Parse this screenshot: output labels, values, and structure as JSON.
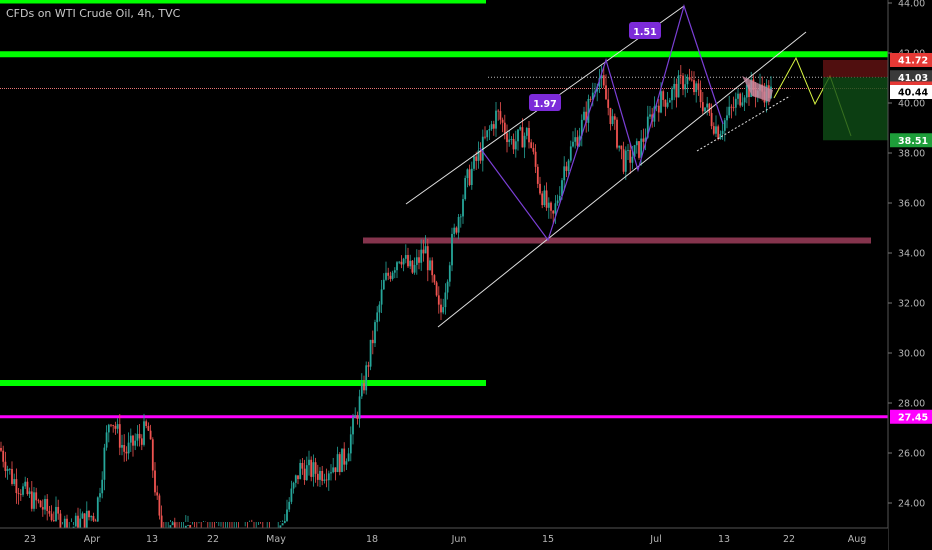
{
  "header": {
    "title": "CFDs on WTI Crude Oil, 4h, TVC"
  },
  "colors": {
    "background": "#000000",
    "up": "#26a69a",
    "down": "#ef5350",
    "support_green": "#00ff00",
    "support_magenta": "#ff00ff",
    "channel": "#e0e0e0",
    "pattern": "#7b3fd6",
    "zone": "#9c3d5a",
    "projection": "#d7f542"
  },
  "chart_data": {
    "type": "candlestick",
    "symbol": "CFDs on WTI Crude Oil",
    "interval": "4h",
    "source": "TVC",
    "ylim": [
      23.0,
      44.0
    ],
    "y_ticks": [
      24.0,
      26.0,
      28.0,
      30.0,
      32.0,
      34.0,
      36.0,
      38.0,
      40.0,
      42.0,
      44.0
    ],
    "y_tick_labels": [
      "24.00",
      "26.00",
      "28.00",
      "30.00",
      "32.00",
      "34.00",
      "36.00",
      "38.00",
      "40.00",
      "42.00",
      "44.00"
    ],
    "x_tick_labels": [
      "23",
      "Apr",
      "13",
      "22",
      "May",
      "18",
      "Jun",
      "15",
      "Jul",
      "13",
      "22",
      "Aug"
    ],
    "price_path": [
      [
        "23",
        26.0
      ],
      [
        "Apr",
        24.4
      ],
      [
        "13",
        25.4
      ],
      [
        "22",
        23.1
      ],
      [
        "May",
        22.0
      ],
      [
        "18",
        30.0
      ],
      [
        "Jun",
        36.8
      ],
      [
        "15",
        34.6
      ],
      [
        "Jul",
        40.0
      ],
      [
        "13",
        39.4
      ]
    ],
    "horizontal_levels": [
      {
        "price": 44.1,
        "color": "support_green",
        "extent": "left"
      },
      {
        "price": 41.95,
        "color": "support_green",
        "extent": "full"
      },
      {
        "price": 28.8,
        "color": "support_green",
        "extent": "left"
      },
      {
        "price": 27.45,
        "color": "support_magenta",
        "extent": "full"
      },
      {
        "price": 34.5,
        "color": "zone",
        "extent": "middle"
      }
    ],
    "price_tags": [
      {
        "label": "41.72",
        "price": 41.72,
        "bg": "#e53935",
        "fg": "#ffffff"
      },
      {
        "label": "41.03",
        "price": 41.03,
        "bg": "#3a3a3a",
        "fg": "#ffffff"
      },
      {
        "label": "40.58",
        "price": 40.58,
        "bg": "#e53935",
        "fg": "#ffffff"
      },
      {
        "label": "40.44",
        "price": 40.44,
        "bg": "#ffffff",
        "fg": "#000000"
      },
      {
        "label": "38.51",
        "price": 38.51,
        "bg": "#1e9e3a",
        "fg": "#ffffff"
      },
      {
        "label": "27.45",
        "price": 27.45,
        "bg": "#ff00ff",
        "fg": "#ffffff"
      }
    ],
    "pattern_labels": [
      {
        "label": "1.51",
        "x": "Jul",
        "price": 43.0
      },
      {
        "label": "1.97",
        "x": "15",
        "price": 39.9
      }
    ]
  }
}
